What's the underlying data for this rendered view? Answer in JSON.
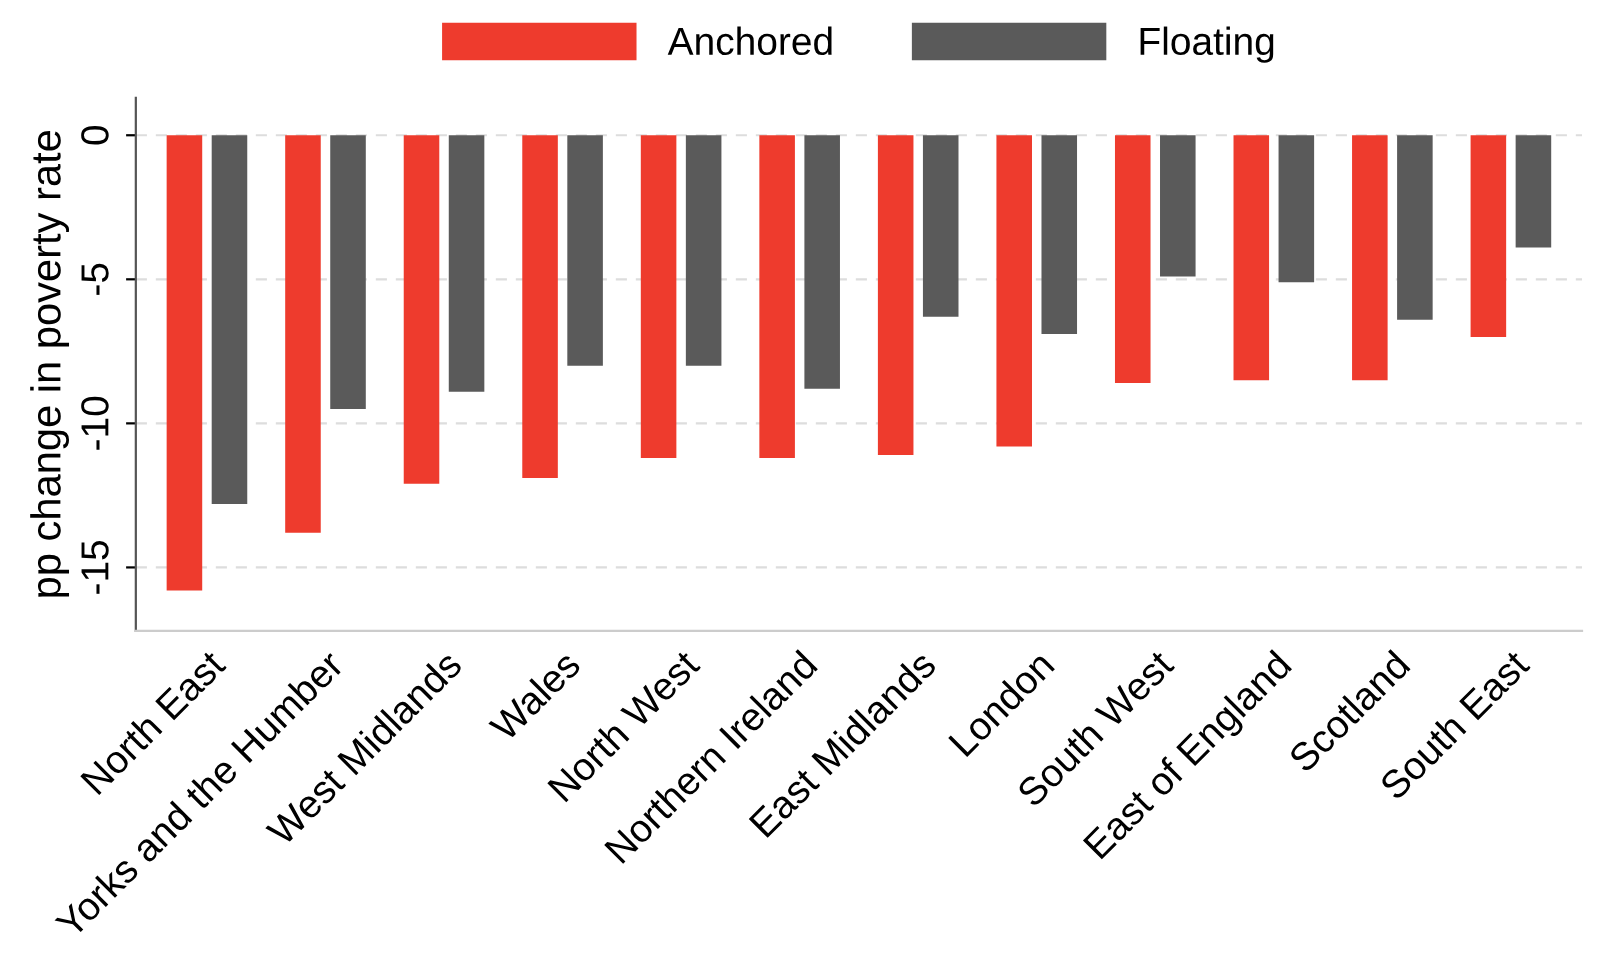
{
  "chart_data": {
    "type": "bar",
    "ylabel": "pp change in poverty rate",
    "categories": [
      "North East",
      "Yorks and the Humber",
      "West Midlands",
      "Wales",
      "North West",
      "Northern Ireland",
      "East Midlands",
      "London",
      "South West",
      "East of England",
      "Scotland",
      "South East"
    ],
    "series": [
      {
        "name": "Anchored",
        "color": "#ee3b2d",
        "values": [
          -15.8,
          -13.8,
          -12.1,
          -11.9,
          -11.2,
          -11.2,
          -11.1,
          -10.8,
          -8.6,
          -8.5,
          -8.5,
          -7.0
        ]
      },
      {
        "name": "Floating",
        "color": "#5a5a5a",
        "values": [
          -12.8,
          -9.5,
          -8.9,
          -8.0,
          -8.0,
          -8.8,
          -6.3,
          -6.9,
          -4.9,
          -5.1,
          -6.4,
          -3.9
        ]
      }
    ],
    "ylim": [
      -17.2,
      1.3
    ],
    "yticks": [
      0,
      -5,
      -10,
      -15
    ],
    "grid": "y",
    "legend": "top"
  }
}
